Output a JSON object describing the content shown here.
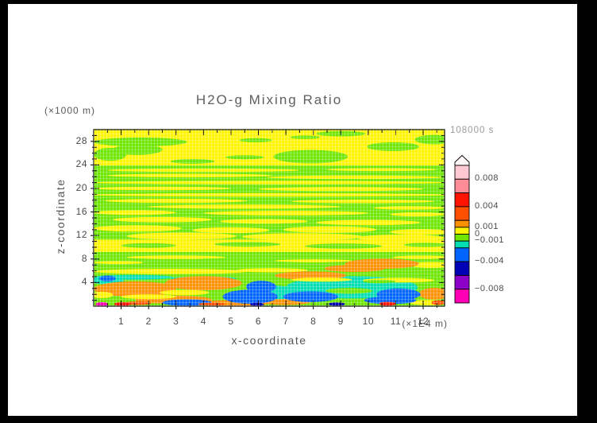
{
  "window": {
    "frame_color": "#000000",
    "page_background": "#FFFFFF"
  },
  "chart_data": {
    "type": "filled_contour",
    "title": "H2O-g Mixing Ratio",
    "timestamp_label": "108000 s",
    "x_axis": {
      "label": "x-coordinate",
      "unit_label": "(×1E4 m)",
      "range": [
        0,
        12.78
      ],
      "major_ticks": [
        1,
        2,
        3,
        4,
        5,
        6,
        7,
        8,
        9,
        10,
        11,
        12
      ],
      "minor_tick_step": 0.5
    },
    "y_axis": {
      "label": "z-coordinate",
      "unit_label": "(×1000 m)",
      "range": [
        0,
        30
      ],
      "major_ticks": [
        4,
        8,
        12,
        16,
        20,
        24,
        28
      ],
      "minor_tick_step": 1
    },
    "levels": [
      -0.01,
      -0.008,
      -0.006,
      -0.004,
      -0.002,
      -0.001,
      0,
      0.001,
      0.002,
      0.004,
      0.006,
      0.008,
      0.01
    ],
    "colors": [
      "#FF00B4",
      "#8C00C8",
      "#0000B4",
      "#0064FF",
      "#00DCB4",
      "#6EE600",
      "#FFF500",
      "#FF9100",
      "#FF5000",
      "#FF1400",
      "#FF8C96",
      "#FFC8D2"
    ],
    "colorbar": {
      "arrow_color": "#FFF6F6",
      "labels": [
        {
          "v": 0.008,
          "t": "0.008"
        },
        {
          "v": 0.004,
          "t": "0.004"
        },
        {
          "v": 0.001,
          "t": "0.001"
        },
        {
          "v": 0,
          "t": "0"
        },
        {
          "v": -0.001,
          "t": "−0.001"
        },
        {
          "v": -0.004,
          "t": "−0.004"
        },
        {
          "v": -0.008,
          "t": "−0.008"
        }
      ]
    },
    "field_bands": [
      [
        0,
        11.3,
        12.78,
        23.9,
        5
      ],
      [
        0,
        6.4,
        12.78,
        9.2,
        5
      ],
      [
        0,
        0,
        12.78,
        6.4,
        5
      ]
    ],
    "field_blobs": [
      [
        1.7,
        27.9,
        1.7,
        0.75,
        5
      ],
      [
        0.6,
        25.8,
        0.6,
        1.1,
        5
      ],
      [
        1.6,
        26.6,
        0.9,
        0.9,
        5
      ],
      [
        5.9,
        28.2,
        0.6,
        0.35,
        5
      ],
      [
        7.7,
        28.7,
        0.55,
        0.3,
        5
      ],
      [
        9.0,
        29.3,
        0.9,
        0.45,
        5
      ],
      [
        12.4,
        28.3,
        0.7,
        0.8,
        5
      ],
      [
        7.9,
        25.4,
        1.35,
        1.15,
        5
      ],
      [
        10.9,
        27.1,
        0.95,
        0.75,
        5
      ],
      [
        3.6,
        24.6,
        0.8,
        0.4,
        5
      ],
      [
        5.5,
        25.3,
        0.7,
        0.35,
        5
      ],
      [
        4.0,
        23.1,
        3.5,
        0.3,
        6
      ],
      [
        10.5,
        23.2,
        2.0,
        0.25,
        6
      ],
      [
        3.5,
        22.2,
        3.0,
        0.3,
        6
      ],
      [
        9.5,
        21.9,
        3.2,
        0.3,
        6
      ],
      [
        6.4,
        21.0,
        6.5,
        0.3,
        6
      ],
      [
        2.5,
        20.0,
        2.5,
        0.3,
        6
      ],
      [
        9.0,
        19.9,
        3.0,
        0.35,
        6
      ],
      [
        6.4,
        18.9,
        6.5,
        0.3,
        6
      ],
      [
        3.0,
        17.9,
        2.6,
        0.35,
        6
      ],
      [
        9.8,
        17.8,
        2.6,
        0.3,
        6
      ],
      [
        5.5,
        16.9,
        3.5,
        0.35,
        6
      ],
      [
        11.5,
        16.7,
        1.3,
        0.3,
        6
      ],
      [
        1.5,
        15.9,
        1.5,
        0.4,
        6
      ],
      [
        7.0,
        15.8,
        3.0,
        0.4,
        6
      ],
      [
        11.8,
        15.6,
        1.0,
        0.35,
        6
      ],
      [
        2.5,
        14.7,
        1.8,
        0.45,
        6
      ],
      [
        6.2,
        14.4,
        1.6,
        0.4,
        6
      ],
      [
        10.0,
        14.2,
        1.9,
        0.45,
        6
      ],
      [
        1.6,
        13.2,
        1.6,
        0.55,
        6
      ],
      [
        5.0,
        12.9,
        1.4,
        0.5,
        6
      ],
      [
        8.6,
        13.0,
        1.7,
        0.55,
        6
      ],
      [
        11.9,
        12.6,
        1.1,
        0.5,
        6
      ],
      [
        3.2,
        11.9,
        2.0,
        0.6,
        6
      ],
      [
        7.6,
        11.8,
        2.2,
        0.6,
        6
      ],
      [
        11.2,
        11.6,
        1.6,
        0.55,
        6
      ],
      [
        2.0,
        10.3,
        1.0,
        0.4,
        5
      ],
      [
        5.6,
        10.5,
        1.2,
        0.4,
        5
      ],
      [
        9.1,
        10.2,
        1.4,
        0.45,
        5
      ],
      [
        12.1,
        10.4,
        0.8,
        0.35,
        5
      ],
      [
        3.0,
        8.3,
        1.8,
        0.3,
        6
      ],
      [
        8.0,
        7.7,
        1.4,
        0.25,
        6
      ],
      [
        11.9,
        8.3,
        1.0,
        0.3,
        6
      ],
      [
        0.9,
        7.4,
        0.9,
        0.25,
        6
      ],
      [
        12.3,
        7.0,
        0.8,
        0.5,
        6
      ],
      [
        10.5,
        7.2,
        1.35,
        0.85,
        7
      ],
      [
        9.5,
        6.4,
        1.1,
        0.6,
        7
      ],
      [
        2.8,
        5.9,
        2.8,
        0.45,
        6
      ],
      [
        6.5,
        6.1,
        1.3,
        0.35,
        6
      ],
      [
        1.4,
        4.9,
        1.5,
        0.4,
        4
      ],
      [
        4.0,
        4.7,
        1.2,
        0.35,
        4
      ],
      [
        0.5,
        4.3,
        0.6,
        0.6,
        4
      ],
      [
        9.4,
        3.2,
        2.4,
        1.9,
        4
      ],
      [
        6.6,
        2.0,
        0.9,
        1.5,
        4
      ],
      [
        1.5,
        2.9,
        1.5,
        1.3,
        7
      ],
      [
        4.0,
        3.9,
        1.4,
        1.2,
        7
      ],
      [
        2.9,
        1.1,
        1.4,
        0.7,
        7
      ],
      [
        7.9,
        5.2,
        1.3,
        0.7,
        7
      ],
      [
        12.4,
        2.1,
        0.55,
        1.0,
        7
      ],
      [
        5.0,
        0.5,
        1.4,
        0.5,
        7
      ],
      [
        7.0,
        0.7,
        0.9,
        0.5,
        7
      ],
      [
        3.3,
        2.3,
        0.9,
        0.45,
        6
      ],
      [
        2.0,
        1.6,
        1.0,
        0.4,
        6
      ],
      [
        8.3,
        4.5,
        1.1,
        0.35,
        6
      ],
      [
        11.1,
        4.4,
        1.3,
        0.4,
        6
      ],
      [
        12.2,
        0.6,
        0.7,
        0.45,
        6
      ],
      [
        0.3,
        1.9,
        0.4,
        0.55,
        6
      ],
      [
        5.7,
        1.6,
        1.0,
        1.2,
        3
      ],
      [
        6.1,
        3.3,
        0.55,
        1.0,
        3
      ],
      [
        7.9,
        1.6,
        1.0,
        0.9,
        3
      ],
      [
        11.1,
        2.0,
        0.8,
        1.0,
        3
      ],
      [
        0.5,
        4.7,
        0.3,
        0.5,
        3
      ],
      [
        3.4,
        0.6,
        0.9,
        0.55,
        3
      ],
      [
        10.8,
        1.0,
        0.95,
        0.65,
        3
      ],
      [
        9.3,
        2.6,
        0.85,
        0.5,
        5
      ],
      [
        10.4,
        4.2,
        0.6,
        0.3,
        5
      ],
      [
        1.6,
        0.5,
        0.5,
        0.3,
        8
      ],
      [
        4.3,
        0.35,
        0.5,
        0.25,
        8
      ],
      [
        12.55,
        0.6,
        0.25,
        0.4,
        8
      ],
      [
        1.05,
        0.35,
        0.3,
        0.35,
        9
      ],
      [
        10.7,
        0.4,
        0.3,
        0.35,
        9
      ],
      [
        8.85,
        0.35,
        0.3,
        0.3,
        2
      ],
      [
        5.95,
        0.3,
        0.25,
        0.3,
        2
      ],
      [
        0.3,
        0.3,
        0.22,
        0.4,
        0
      ]
    ]
  }
}
